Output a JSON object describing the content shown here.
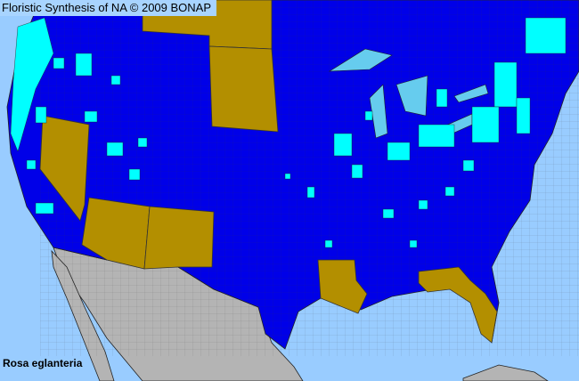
{
  "header": {
    "title": "Floristic Synthesis of NA © 2009 BONAP"
  },
  "map": {
    "species": "Rosa eglanteria",
    "colors": {
      "water": "#99ccff",
      "present_native": "#0000e8",
      "present_county": "#00ffff",
      "absent_state": "#b38f00",
      "outside_range": "#b4b4b4",
      "borders": "#3c3c3c"
    }
  }
}
